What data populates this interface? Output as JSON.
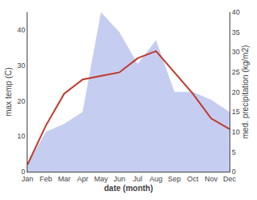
{
  "chart_data": {
    "type": "line",
    "xlabel": "date (month)",
    "ylabel": "max temp (C)",
    "y2label": "med. precipitation (kg/m2)",
    "categories": [
      "Jan",
      "Feb",
      "Mar",
      "Apr",
      "May",
      "Jun",
      "Jul",
      "Aug",
      "Sep",
      "Oct",
      "Nov",
      "Dec"
    ],
    "series": [
      {
        "type": "area",
        "axis": "y2",
        "color": "#c5cdf0",
        "values": [
          2,
          10,
          12,
          15,
          40,
          35,
          27,
          33,
          20,
          20,
          18,
          15
        ]
      },
      {
        "type": "line",
        "color": "#c0392b",
        "values": [
          2,
          13,
          22,
          26,
          27,
          28,
          32,
          34,
          28,
          22,
          15,
          12
        ]
      }
    ],
    "ylim": [
      0,
      45
    ],
    "yticks": [
      0,
      10,
      20,
      30,
      40
    ],
    "y2lim": [
      0,
      40
    ],
    "y2ticks": [
      0,
      5,
      10,
      15,
      20,
      25,
      30,
      35,
      40
    ],
    "grid": false
  }
}
